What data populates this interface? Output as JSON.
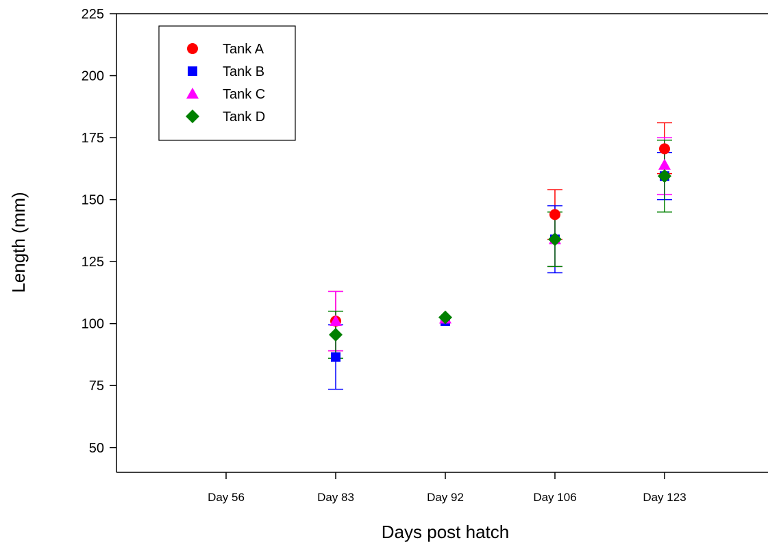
{
  "chart_data": {
    "type": "scatter",
    "title": "",
    "xlabel": "Days post hatch",
    "ylabel": "Length (mm)",
    "categories": [
      "Day 56",
      "Day 83",
      "Day 92",
      "Day 106",
      "Day 123"
    ],
    "ylim": [
      40,
      225
    ],
    "yticks": [
      50,
      75,
      100,
      125,
      150,
      175,
      200,
      225
    ],
    "grid": false,
    "legend_position": "top-left",
    "error_bars": "symmetric, given as [lower, upper] in data units",
    "series": [
      {
        "name": "Tank A",
        "marker": "circle",
        "color": "#ff0000",
        "values": [
          null,
          101,
          null,
          144,
          170.5
        ],
        "error": [
          null,
          [
            89,
            113
          ],
          null,
          [
            134,
            154
          ],
          [
            160.5,
            181
          ]
        ]
      },
      {
        "name": "Tank B",
        "marker": "square",
        "color": "#0000ff",
        "values": [
          null,
          86.5,
          101,
          134,
          159.5
        ],
        "error": [
          null,
          [
            73.5,
            99.5
          ],
          null,
          [
            120.5,
            147.5
          ],
          [
            150,
            169
          ]
        ]
      },
      {
        "name": "Tank C",
        "marker": "triangle",
        "color": "#ff00ff",
        "values": [
          null,
          101,
          102,
          134,
          164
        ],
        "error": [
          null,
          [
            89,
            113
          ],
          null,
          [
            123,
            145
          ],
          [
            152,
            175
          ]
        ]
      },
      {
        "name": "Tank D",
        "marker": "diamond",
        "color": "#008000",
        "values": [
          null,
          95.5,
          102.5,
          134,
          159.5
        ],
        "error": [
          null,
          [
            86,
            105
          ],
          null,
          [
            123,
            145
          ],
          [
            145,
            174
          ]
        ]
      }
    ]
  }
}
